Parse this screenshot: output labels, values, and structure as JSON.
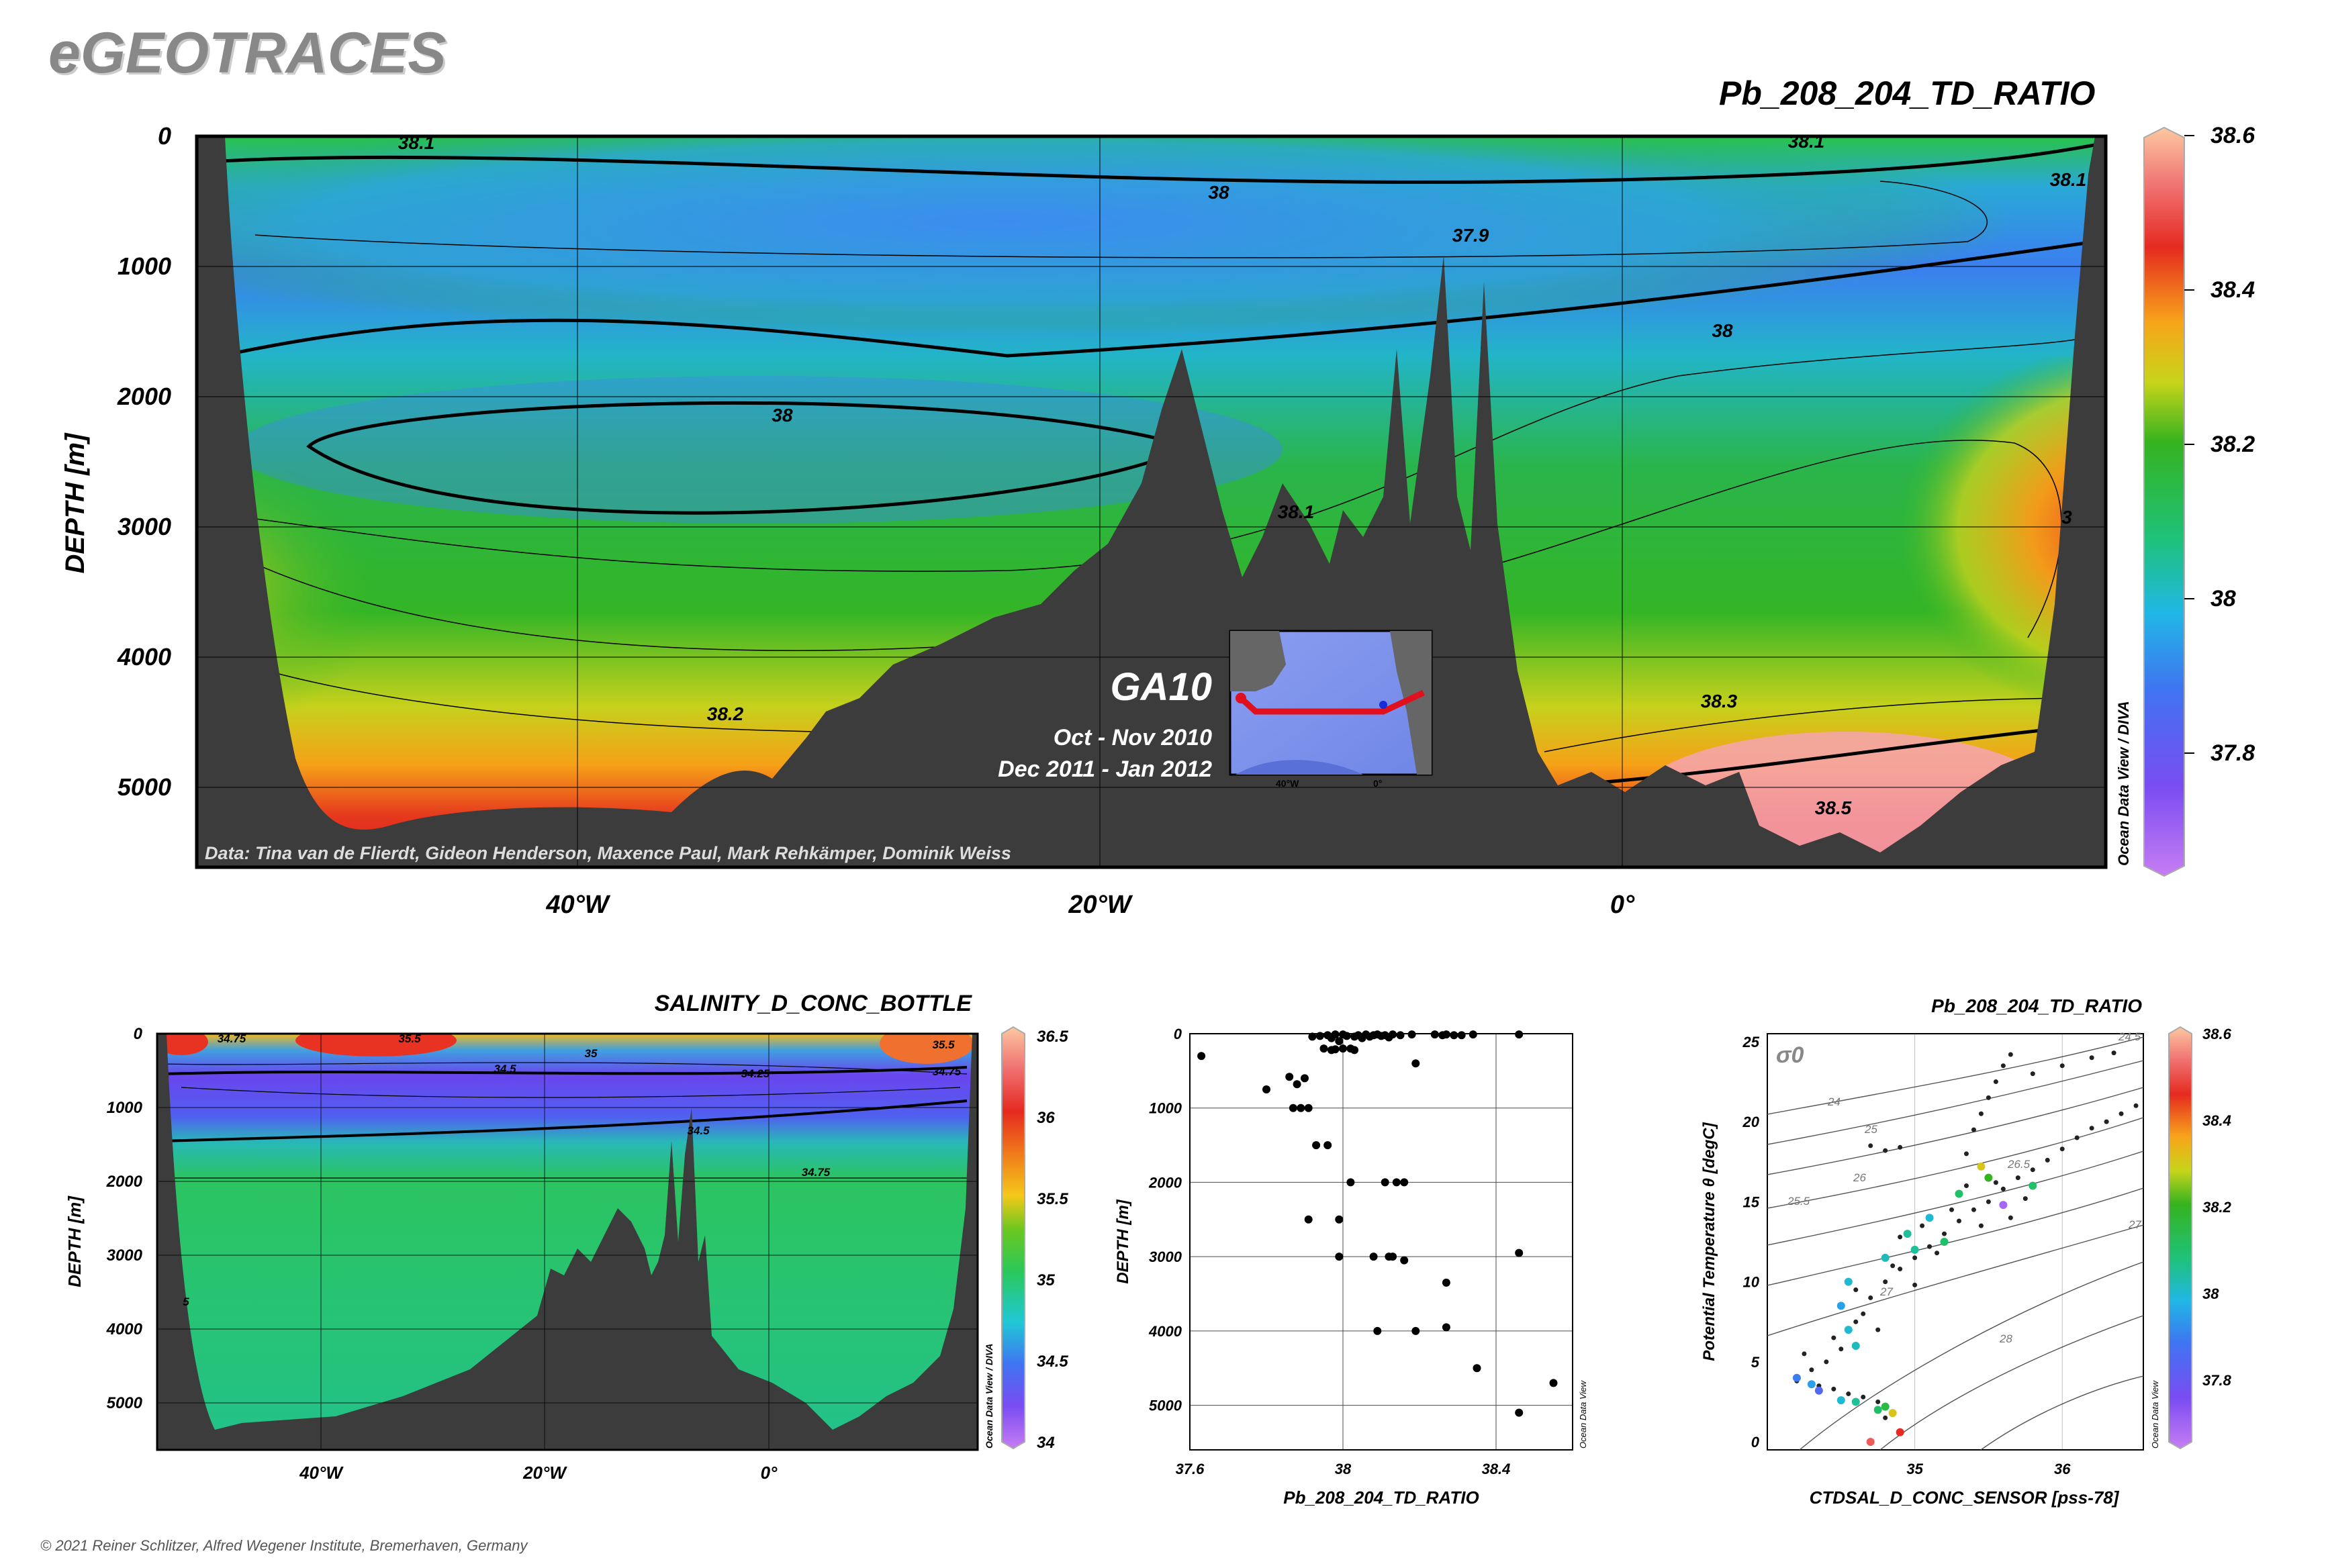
{
  "brand": "eGEOTRACES",
  "copyright": "© 2021 Reiner Schlitzer, Alfred Wegener Institute, Bremerhaven, Germany",
  "software": "Ocean Data View / DIVA",
  "software_short": "Ocean Data View",
  "inset": {
    "cruise": "GA10",
    "period1": "Oct - Nov 2010",
    "period2": "Dec 2011 - Jan 2012",
    "map_ticks": [
      "40°W",
      "0°"
    ]
  },
  "colors": {
    "terrain": "#3c3c3c",
    "track": "#e0101e"
  },
  "chart_data": [
    {
      "id": "main-section",
      "type": "heatmap",
      "title": "Pb_208_204_TD_RATIO",
      "ylabel": "DEPTH [m]",
      "xlabel": "",
      "x_ticks": [
        "40°W",
        "20°W",
        "0°"
      ],
      "y_ticks": [
        0,
        1000,
        2000,
        3000,
        4000,
        5000
      ],
      "ylim": [
        0,
        5600
      ],
      "colorbar": {
        "min": 37.65,
        "max": 38.6,
        "ticks": [
          38.6,
          38.4,
          38.2,
          38,
          37.8
        ]
      },
      "contour_labels": [
        "38.1",
        "38",
        "37.9",
        "38",
        "38",
        "38.1",
        "38.2",
        "38.3",
        "38.1",
        "38.1",
        "38.5",
        "3"
      ],
      "credit": "Data: Tina van de Flierdt, Gideon Henderson, Maxence Paul, Mark Rehkämper, Dominik Weiss"
    },
    {
      "id": "salinity-section",
      "type": "heatmap",
      "title": "SALINITY_D_CONC_BOTTLE",
      "ylabel": "DEPTH [m]",
      "x_ticks": [
        "40°W",
        "20°W",
        "0°"
      ],
      "y_ticks": [
        0,
        1000,
        2000,
        3000,
        4000,
        5000
      ],
      "ylim": [
        0,
        5600
      ],
      "colorbar": {
        "min": 34,
        "max": 36.5,
        "ticks": [
          36.5,
          36,
          35.5,
          35,
          34.5,
          34
        ]
      },
      "contour_labels": [
        "34.75",
        "35.5",
        "35",
        "34.5",
        "34.25",
        "34.5",
        "34.75",
        "35.5",
        "34.75",
        "5"
      ]
    },
    {
      "id": "profile",
      "type": "scatter",
      "title": "",
      "xlabel": "Pb_208_204_TD_RATIO",
      "ylabel": "DEPTH [m]",
      "xlim": [
        37.6,
        38.6
      ],
      "ylim": [
        0,
        5600
      ],
      "x_ticks": [
        37.6,
        38,
        38.4
      ],
      "y_ticks": [
        0,
        1000,
        2000,
        3000,
        4000,
        5000
      ],
      "points": [
        [
          37.63,
          300
        ],
        [
          37.8,
          750
        ],
        [
          37.86,
          580
        ],
        [
          37.88,
          680
        ],
        [
          37.9,
          600
        ],
        [
          37.87,
          1000
        ],
        [
          37.89,
          1000
        ],
        [
          37.91,
          1000
        ],
        [
          37.93,
          1500
        ],
        [
          37.96,
          1500
        ],
        [
          37.91,
          2500
        ],
        [
          37.99,
          2500
        ],
        [
          38.02,
          2000
        ],
        [
          38.11,
          2000
        ],
        [
          38.14,
          2000
        ],
        [
          38.16,
          2000
        ],
        [
          37.99,
          3000
        ],
        [
          38.08,
          3000
        ],
        [
          38.12,
          3000
        ],
        [
          38.13,
          3000
        ],
        [
          38.16,
          3050
        ],
        [
          38.27,
          3350
        ],
        [
          38.46,
          2950
        ],
        [
          38.09,
          4000
        ],
        [
          38.19,
          4000
        ],
        [
          38.27,
          3950
        ],
        [
          38.35,
          4500
        ],
        [
          38.46,
          5100
        ],
        [
          38.55,
          4700
        ],
        [
          37.97,
          220
        ],
        [
          38.19,
          400
        ],
        [
          37.92,
          40
        ],
        [
          37.94,
          30
        ],
        [
          37.96,
          20
        ],
        [
          37.97,
          60
        ],
        [
          37.98,
          10
        ],
        [
          37.99,
          100
        ],
        [
          38.0,
          10
        ],
        [
          38.01,
          30
        ],
        [
          38.02,
          200
        ],
        [
          38.03,
          40
        ],
        [
          38.04,
          20
        ],
        [
          38.05,
          60
        ],
        [
          38.06,
          10
        ],
        [
          38.07,
          40
        ],
        [
          38.08,
          20
        ],
        [
          38.09,
          10
        ],
        [
          38.1,
          30
        ],
        [
          38.11,
          20
        ],
        [
          38.12,
          50
        ],
        [
          38.13,
          10
        ],
        [
          38.15,
          20
        ],
        [
          38.18,
          10
        ],
        [
          38.24,
          10
        ],
        [
          38.26,
          20
        ],
        [
          38.27,
          10
        ],
        [
          38.29,
          20
        ],
        [
          38.31,
          20
        ],
        [
          38.34,
          10
        ],
        [
          38.46,
          10
        ],
        [
          37.95,
          200
        ],
        [
          37.98,
          210
        ],
        [
          38.0,
          200
        ],
        [
          38.03,
          220
        ]
      ]
    },
    {
      "id": "ts-diagram",
      "type": "scatter",
      "title": "Pb_208_204_TD_RATIO",
      "xlabel": "CTDSAL_D_CONC_SENSOR [pss-78]",
      "ylabel": "Potential Temperature θ [degC]",
      "xlim": [
        34.0,
        36.55
      ],
      "ylim": [
        -0.5,
        25.5
      ],
      "x_ticks": [
        35,
        36
      ],
      "y_ticks": [
        0,
        5,
        10,
        15,
        20,
        25
      ],
      "sigma_label": "σ0",
      "isopycnal_labels": [
        "24",
        "24.5",
        "25",
        "25.5",
        "26",
        "26.5",
        "27",
        "27",
        "28"
      ],
      "colorbar": {
        "min": 37.65,
        "max": 38.6,
        "ticks": [
          38.6,
          38.4,
          38.2,
          38,
          37.8
        ]
      },
      "colored_points": [
        [
          34.2,
          4.0,
          37.9
        ],
        [
          34.3,
          3.6,
          37.95
        ],
        [
          34.35,
          3.2,
          37.85
        ],
        [
          34.5,
          2.6,
          38.0
        ],
        [
          34.6,
          2.5,
          38.05
        ],
        [
          34.75,
          2.0,
          38.1
        ],
        [
          34.8,
          2.2,
          38.15
        ],
        [
          34.85,
          1.8,
          38.3
        ],
        [
          34.9,
          0.6,
          38.45
        ],
        [
          34.7,
          0.0,
          38.5
        ],
        [
          34.6,
          6.0,
          38.02
        ],
        [
          34.55,
          7.0,
          38.0
        ],
        [
          34.5,
          8.5,
          37.95
        ],
        [
          34.55,
          10.0,
          38.0
        ],
        [
          34.8,
          11.5,
          38.02
        ],
        [
          34.95,
          13.0,
          38.05
        ],
        [
          35.1,
          14.0,
          38.0
        ],
        [
          35.2,
          12.5,
          38.1
        ],
        [
          35.45,
          17.2,
          38.3
        ],
        [
          35.5,
          16.5,
          38.2
        ],
        [
          35.8,
          16.0,
          38.1
        ],
        [
          35.6,
          14.8,
          37.7
        ],
        [
          35.3,
          15.5,
          38.1
        ],
        [
          35.0,
          12.0,
          38.05
        ]
      ],
      "black_points": [
        [
          34.2,
          3.8
        ],
        [
          34.3,
          4.5
        ],
        [
          34.4,
          5.0
        ],
        [
          34.25,
          5.5
        ],
        [
          34.45,
          6.5
        ],
        [
          34.6,
          7.5
        ],
        [
          34.65,
          8.0
        ],
        [
          34.7,
          9.0
        ],
        [
          34.8,
          10.0
        ],
        [
          34.9,
          10.8
        ],
        [
          35.0,
          11.5
        ],
        [
          35.1,
          12.2
        ],
        [
          35.2,
          13.0
        ],
        [
          35.3,
          13.8
        ],
        [
          35.4,
          14.5
        ],
        [
          35.5,
          15.0
        ],
        [
          35.6,
          15.8
        ],
        [
          35.7,
          16.5
        ],
        [
          35.8,
          17.0
        ],
        [
          35.9,
          17.6
        ],
        [
          36.0,
          18.3
        ],
        [
          36.1,
          19.0
        ],
        [
          36.2,
          19.6
        ],
        [
          36.3,
          20.0
        ],
        [
          36.4,
          20.5
        ],
        [
          36.5,
          21.0
        ],
        [
          35.35,
          18.0
        ],
        [
          35.4,
          19.5
        ],
        [
          35.45,
          20.5
        ],
        [
          35.5,
          21.5
        ],
        [
          35.55,
          22.5
        ],
        [
          35.6,
          23.5
        ],
        [
          35.65,
          24.2
        ],
        [
          35.8,
          23.0
        ],
        [
          36.0,
          23.5
        ],
        [
          36.2,
          24.0
        ],
        [
          36.35,
          24.3
        ],
        [
          34.7,
          18.5
        ],
        [
          34.8,
          18.2
        ],
        [
          34.9,
          18.4
        ],
        [
          34.75,
          2.5
        ],
        [
          34.8,
          1.5
        ],
        [
          34.65,
          2.8
        ],
        [
          34.55,
          3.0
        ],
        [
          34.45,
          3.3
        ],
        [
          34.35,
          3.5
        ],
        [
          34.9,
          12.8
        ],
        [
          35.05,
          13.5
        ],
        [
          35.15,
          11.8
        ],
        [
          35.25,
          14.5
        ],
        [
          35.35,
          16.0
        ],
        [
          35.55,
          16.2
        ],
        [
          35.65,
          14.0
        ],
        [
          35.75,
          15.2
        ],
        [
          35.45,
          13.5
        ],
        [
          34.6,
          9.5
        ],
        [
          34.85,
          11.0
        ],
        [
          35.0,
          9.8
        ],
        [
          34.75,
          7.0
        ],
        [
          34.5,
          5.8
        ]
      ]
    }
  ]
}
